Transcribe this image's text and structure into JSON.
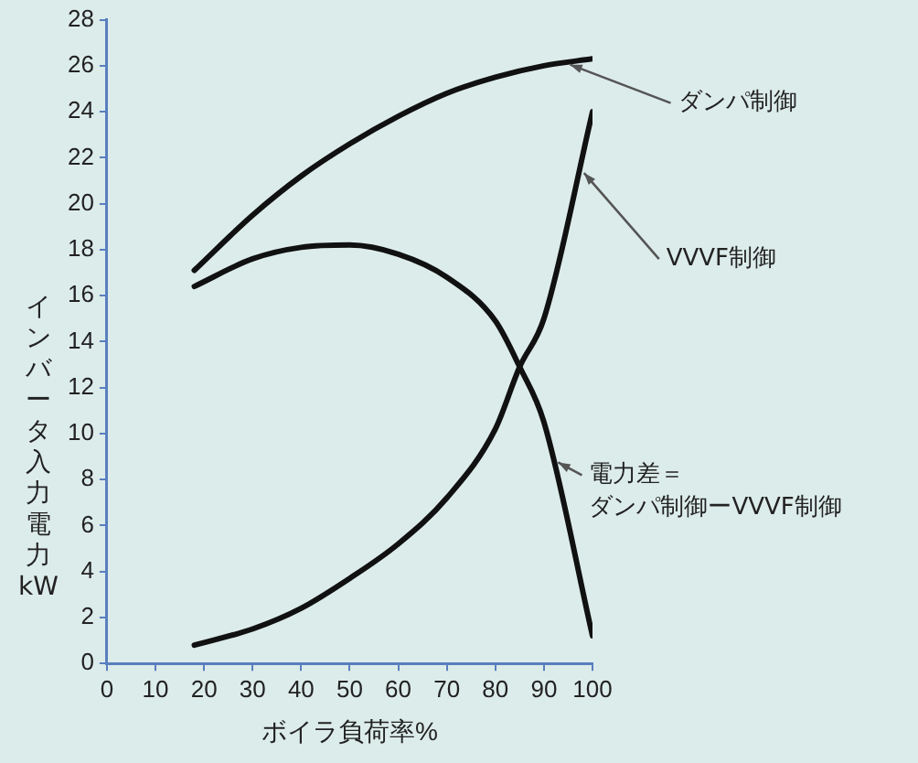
{
  "chart_data": {
    "type": "line",
    "xlabel": "ボイラ負荷率%",
    "ylabel": "インバータ入力電力kW",
    "xlim": [
      0,
      100
    ],
    "xticks": [
      0,
      10,
      20,
      30,
      40,
      50,
      60,
      70,
      80,
      90,
      100
    ],
    "ylim": [
      0,
      28
    ],
    "yticks": [
      0,
      2,
      4,
      6,
      8,
      10,
      12,
      14,
      16,
      18,
      20,
      22,
      24,
      26,
      28
    ],
    "marker": "none",
    "line_style": "solid",
    "series": [
      {
        "name": "ダンパ制御",
        "color": "#111111",
        "x": [
          18,
          30,
          40,
          50,
          60,
          70,
          80,
          90,
          100
        ],
        "values": [
          17.1,
          19.5,
          21.2,
          22.6,
          23.8,
          24.8,
          25.5,
          26.0,
          26.3
        ]
      },
      {
        "name": "VVVF制御",
        "color": "#111111",
        "x": [
          18,
          30,
          40,
          50,
          60,
          70,
          80,
          85,
          90,
          100
        ],
        "values": [
          0.8,
          1.5,
          2.4,
          3.7,
          5.2,
          7.2,
          10.2,
          12.9,
          15.0,
          24.0
        ]
      },
      {
        "name": "電力差＝ダンパ制御ーVVVF制御",
        "color": "#111111",
        "x": [
          18,
          30,
          40,
          50,
          60,
          70,
          80,
          85,
          90,
          100
        ],
        "values": [
          16.4,
          17.6,
          18.1,
          18.2,
          17.8,
          16.8,
          14.9,
          12.9,
          10.5,
          1.2
        ]
      }
    ]
  }
}
